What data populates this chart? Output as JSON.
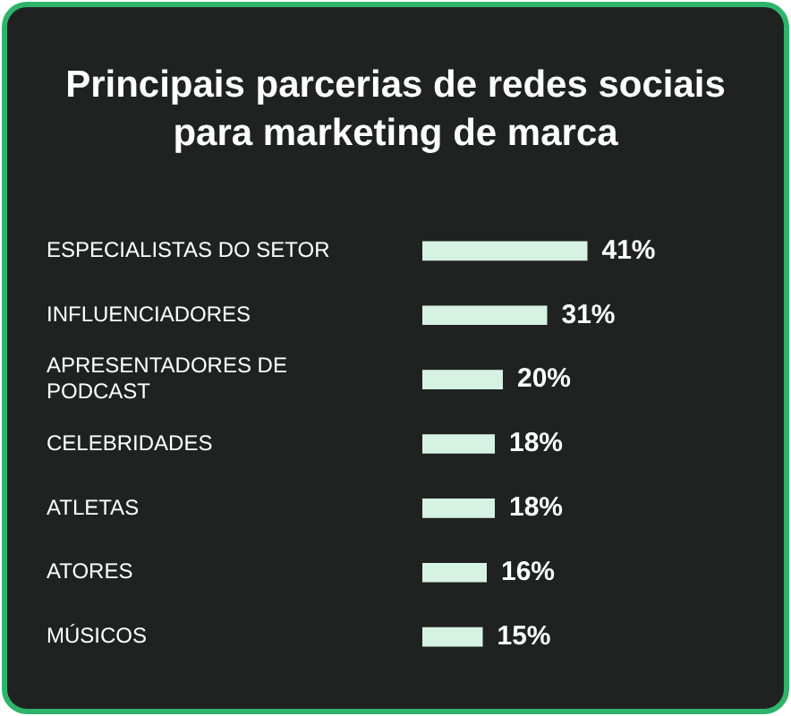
{
  "chart_data": {
    "type": "bar",
    "title": "Principais parcerias de redes sociais para marketing de marca",
    "categories": [
      "ESPECIALISTAS DO SETOR",
      "INFLUENCIADORES",
      "APRESENTADORES DE PODCAST",
      "CELEBRIDADES",
      "ATLETAS",
      "ATORES",
      "MÚSICOS"
    ],
    "values": [
      41,
      31,
      20,
      18,
      18,
      16,
      15
    ],
    "value_labels": [
      "41%",
      "31%",
      "20%",
      "18%",
      "18%",
      "16%",
      "15%"
    ],
    "color": "#d5f2e3",
    "orientation": "horizontal",
    "tick_labels": "y"
  }
}
